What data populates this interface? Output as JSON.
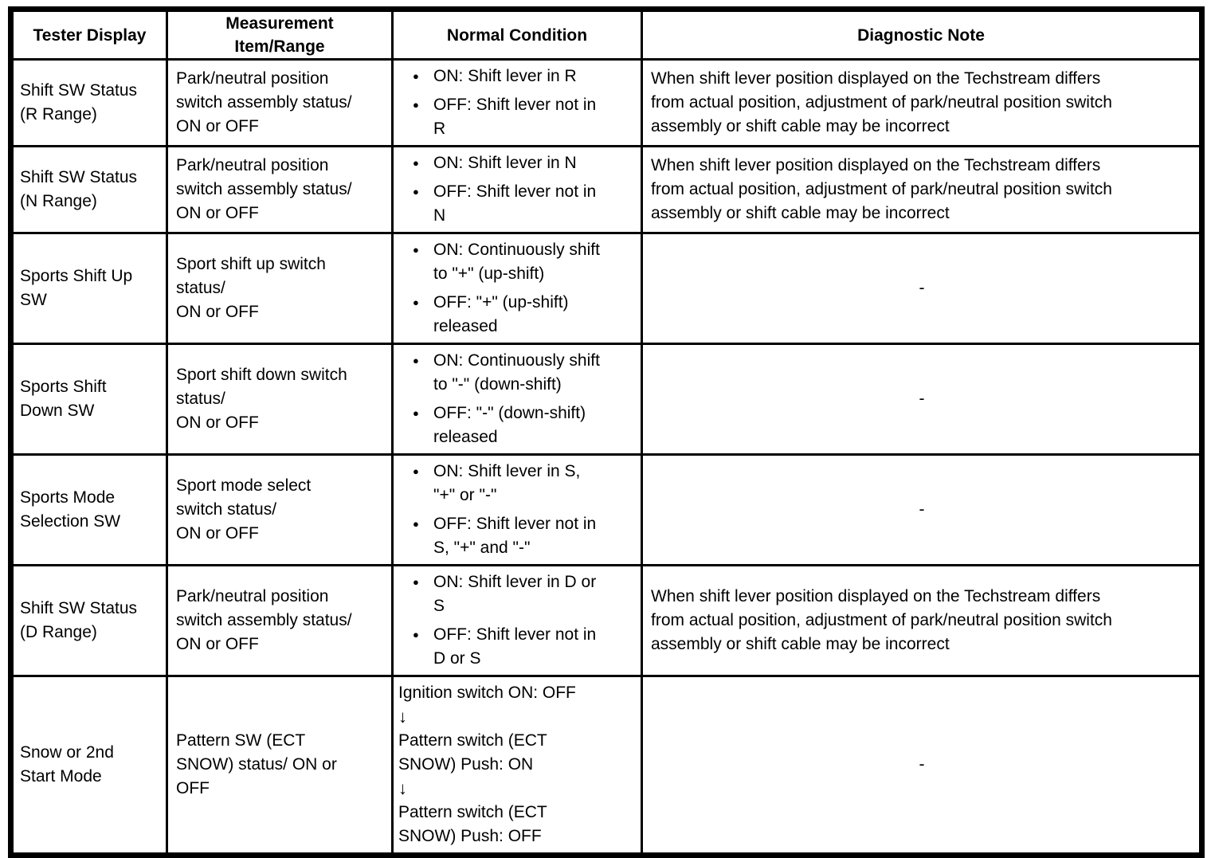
{
  "page": {
    "background_color": "#ffffff",
    "border_color": "#000000",
    "text_color": "#000000"
  },
  "icons": {
    "bullet": "●",
    "down_arrow": "↓"
  },
  "table": {
    "columns": [
      {
        "id": "tester_display",
        "label": "Tester Display"
      },
      {
        "id": "measurement",
        "label": "Measurement\nItem/Range"
      },
      {
        "id": "normal_condition",
        "label": "Normal Condition"
      },
      {
        "id": "diagnostic_note",
        "label": "Diagnostic Note"
      }
    ],
    "rows": [
      {
        "tester_display": "Shift SW Status\n(R Range)",
        "measurement": "Park/neutral position\nswitch assembly status/\nON or OFF",
        "normal_condition": {
          "type": "bullets",
          "items": [
            "ON: Shift lever in R",
            "OFF: Shift lever not in\nR"
          ]
        },
        "diagnostic_note": "When shift lever position displayed on the Techstream differs\nfrom actual position, adjustment of park/neutral position switch\nassembly or shift cable may be incorrect"
      },
      {
        "tester_display": "Shift SW Status\n(N Range)",
        "measurement": "Park/neutral position\nswitch assembly status/\nON or OFF",
        "normal_condition": {
          "type": "bullets",
          "items": [
            "ON: Shift lever in N",
            "OFF: Shift lever not in\nN"
          ]
        },
        "diagnostic_note": "When shift lever position displayed on the Techstream differs\nfrom actual position, adjustment of park/neutral position switch\nassembly or shift cable may be incorrect"
      },
      {
        "tester_display": "Sports Shift Up\nSW",
        "measurement": "Sport shift up switch\nstatus/\nON or OFF",
        "normal_condition": {
          "type": "bullets",
          "items": [
            "ON: Continuously shift\nto \"+\" (up-shift)",
            "OFF: \"+\" (up-shift)\nreleased"
          ]
        },
        "diagnostic_note": "-"
      },
      {
        "tester_display": "Sports Shift\nDown SW",
        "measurement": "Sport shift down switch\nstatus/\nON or OFF",
        "normal_condition": {
          "type": "bullets",
          "items": [
            "ON: Continuously shift\nto \"-\" (down-shift)",
            "OFF: \"-\" (down-shift)\nreleased"
          ]
        },
        "diagnostic_note": "-"
      },
      {
        "tester_display": "Sports Mode\nSelection SW",
        "measurement": "Sport mode select\nswitch status/\nON or OFF",
        "normal_condition": {
          "type": "bullets",
          "items": [
            "ON: Shift lever in S,\n\"+\" or \"-\"",
            "OFF: Shift lever not in\nS, \"+\" and \"-\""
          ]
        },
        "diagnostic_note": "-"
      },
      {
        "tester_display": "Shift SW Status\n(D Range)",
        "measurement": "Park/neutral position\nswitch assembly status/\nON or OFF",
        "normal_condition": {
          "type": "bullets",
          "items": [
            "ON: Shift lever in D or\nS",
            "OFF: Shift lever not in\nD or S"
          ]
        },
        "diagnostic_note": "When shift lever position displayed on the Techstream differs\nfrom actual position, adjustment of park/neutral position switch\nassembly or shift cable may be incorrect"
      },
      {
        "tester_display": "Snow or 2nd\nStart Mode",
        "measurement": "Pattern SW (ECT\nSNOW) status/ ON or\nOFF",
        "normal_condition": {
          "type": "sequence",
          "steps": [
            "Ignition switch ON: OFF",
            "Pattern switch (ECT\nSNOW) Push: ON",
            "Pattern switch (ECT\nSNOW) Push: OFF"
          ]
        },
        "diagnostic_note": "-"
      }
    ]
  }
}
